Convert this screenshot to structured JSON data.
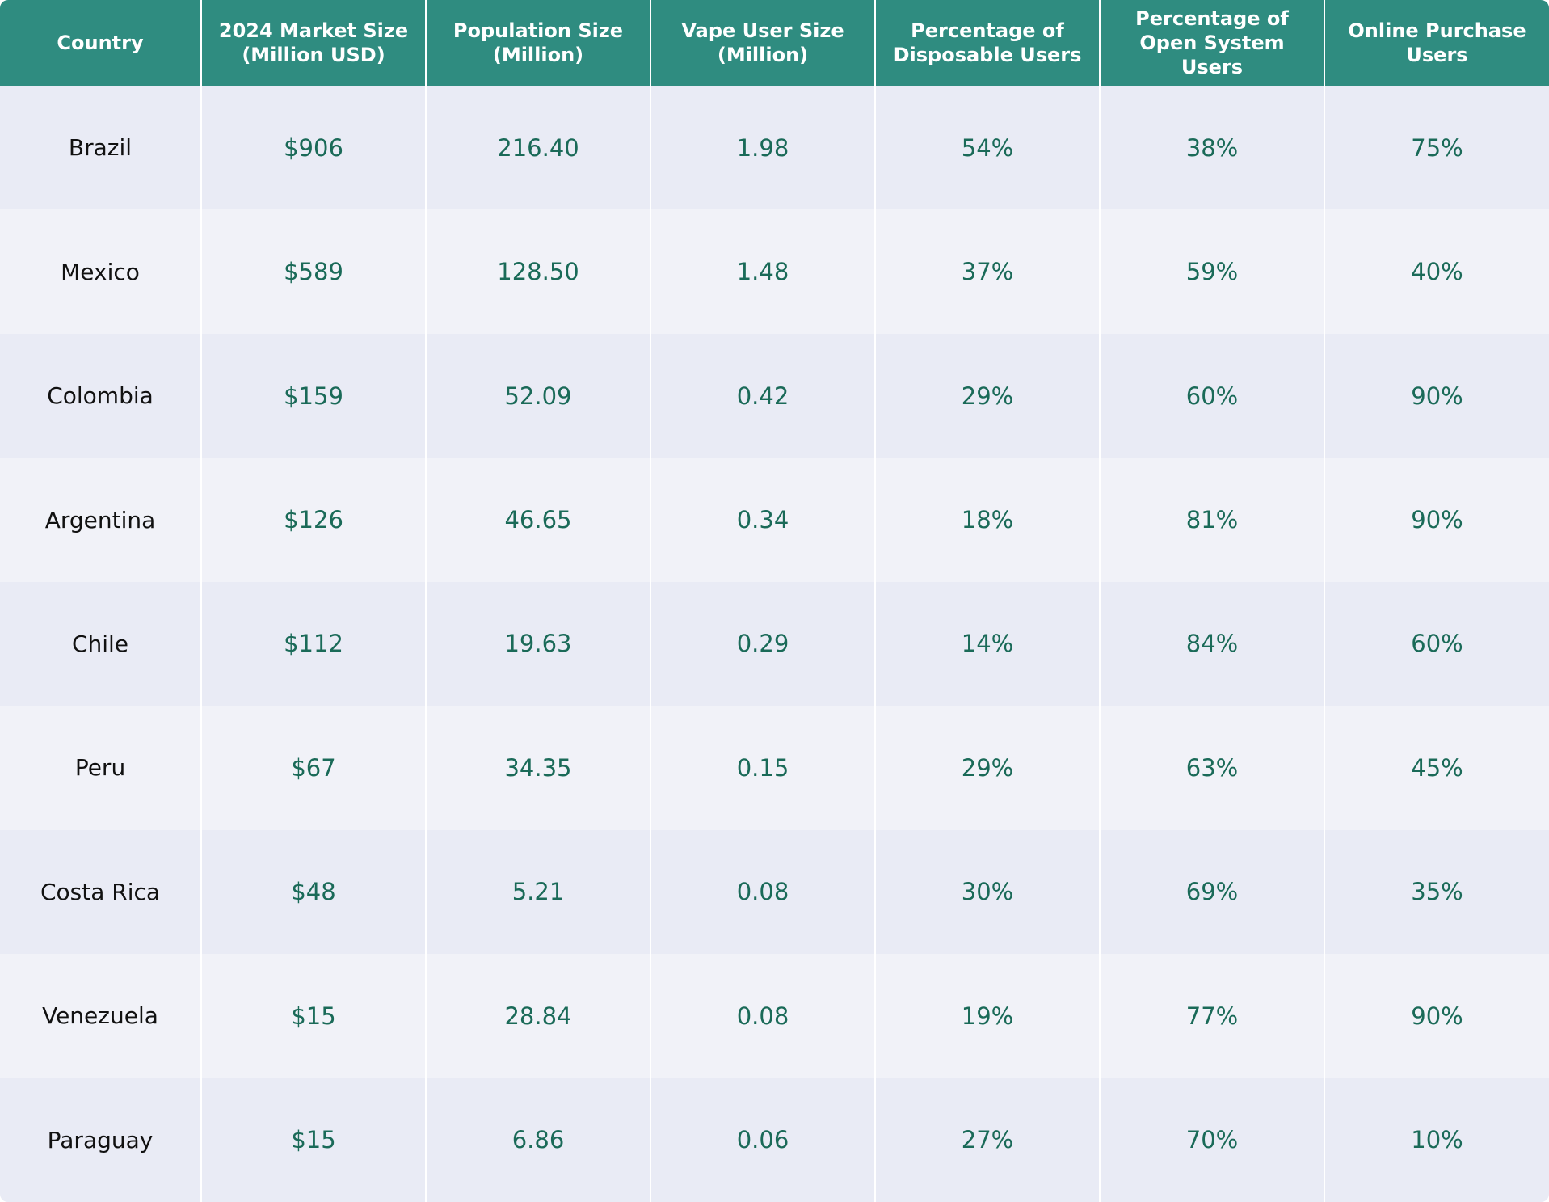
{
  "table": {
    "headers": [
      [
        "Country"
      ],
      [
        "2024 Market Size",
        "(Million USD)"
      ],
      [
        "Population Size",
        "(Million)"
      ],
      [
        "Vape User Size",
        "(Million)"
      ],
      [
        "Percentage of",
        "Disposable Users"
      ],
      [
        "Percentage of",
        "Open System Users"
      ],
      [
        "Online Purchase",
        "Users"
      ]
    ],
    "rows": [
      [
        "Brazil",
        "$906",
        "216.40",
        "1.98",
        "54%",
        "38%",
        "75%"
      ],
      [
        "Mexico",
        "$589",
        "128.50",
        "1.48",
        "37%",
        "59%",
        "40%"
      ],
      [
        "Colombia",
        "$159",
        "52.09",
        "0.42",
        "29%",
        "60%",
        "90%"
      ],
      [
        "Argentina",
        "$126",
        "46.65",
        "0.34",
        "18%",
        "81%",
        "90%"
      ],
      [
        "Chile",
        "$112",
        "19.63",
        "0.29",
        "14%",
        "84%",
        "60%"
      ],
      [
        "Peru",
        "$67",
        "34.35",
        "0.15",
        "29%",
        "63%",
        "45%"
      ],
      [
        "Costa Rica",
        "$48",
        "5.21",
        "0.08",
        "30%",
        "69%",
        "35%"
      ],
      [
        "Venezuela",
        "$15",
        "28.84",
        "0.08",
        "19%",
        "77%",
        "90%"
      ],
      [
        "Paraguay",
        "$15",
        "6.86",
        "0.06",
        "27%",
        "70%",
        "10%"
      ]
    ]
  },
  "colors": {
    "header_background": "#2f8c80",
    "header_text": "#ffffff",
    "row_odd": "#e9ebf5",
    "row_even": "#f1f2f8",
    "value_text": "#1a6a58",
    "country_text": "#111111"
  }
}
